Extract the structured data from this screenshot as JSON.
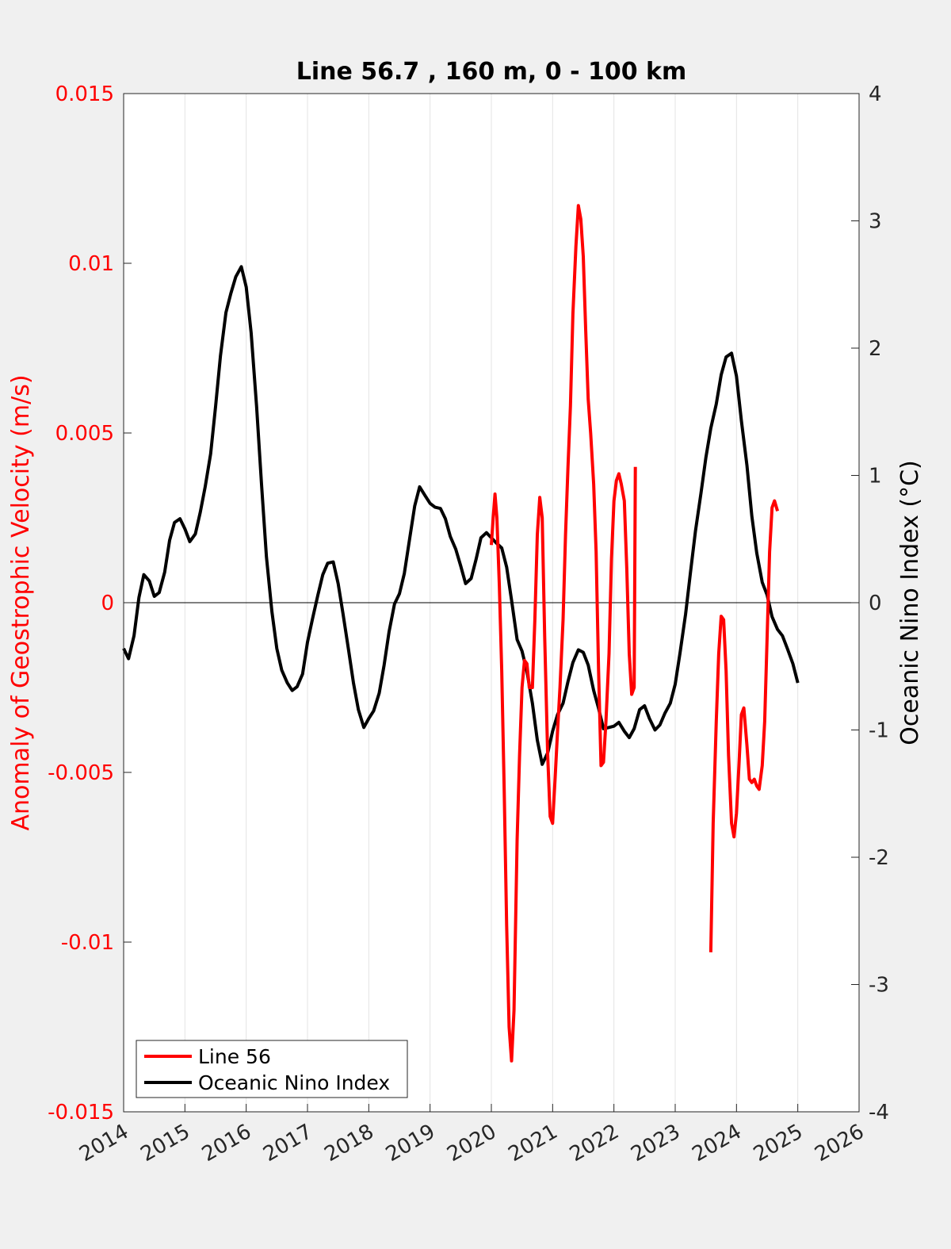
{
  "chart_data": {
    "type": "line",
    "title": "Line 56.7 , 160 m, 0 - 100 km",
    "xlim": [
      2014,
      2026
    ],
    "x_ticks": [
      2014,
      2015,
      2016,
      2017,
      2018,
      2019,
      2020,
      2021,
      2022,
      2023,
      2024,
      2025,
      2026
    ],
    "x_tick_labels": [
      "2014",
      "2015",
      "2016",
      "2017",
      "2018",
      "2019",
      "2020",
      "2021",
      "2022",
      "2023",
      "2024",
      "2025",
      "2026"
    ],
    "grid": "vertical",
    "legend_position": "bottom-left",
    "y_left": {
      "label": "Anomaly of Geostrophic Velocity (m/s)",
      "lim": [
        -0.015,
        0.015
      ],
      "ticks": [
        -0.015,
        -0.01,
        -0.005,
        0,
        0.005,
        0.01,
        0.015
      ],
      "tick_labels": [
        "-0.015",
        "-0.01",
        "-0.005",
        "0",
        "0.005",
        "0.01",
        "0.015"
      ],
      "color": "#ff0000"
    },
    "y_right": {
      "label": "Oceanic Nino Index (°C)",
      "lim": [
        -4,
        4
      ],
      "ticks": [
        -4,
        -3,
        -2,
        -1,
        0,
        1,
        2,
        3,
        4
      ],
      "tick_labels": [
        "-4",
        "-3",
        "-2",
        "-1",
        "0",
        "1",
        "2",
        "3",
        "4"
      ],
      "color": "#000000"
    },
    "series": [
      {
        "name": "Line 56",
        "axis": "left",
        "color": "#ff0000",
        "segments": [
          [
            [
              2020.0,
              0.0017
            ],
            [
              2020.03,
              0.0025
            ],
            [
              2020.06,
              0.0032
            ],
            [
              2020.09,
              0.0025
            ],
            [
              2020.13,
              0.0005
            ],
            [
              2020.17,
              -0.002
            ],
            [
              2020.21,
              -0.0055
            ],
            [
              2020.25,
              -0.0095
            ],
            [
              2020.29,
              -0.0125
            ],
            [
              2020.33,
              -0.0135
            ],
            [
              2020.37,
              -0.012
            ],
            [
              2020.42,
              -0.007
            ],
            [
              2020.46,
              -0.0045
            ],
            [
              2020.5,
              -0.0025
            ],
            [
              2020.54,
              -0.0017
            ],
            [
              2020.58,
              -0.0018
            ],
            [
              2020.62,
              -0.0025
            ],
            [
              2020.67,
              -0.0025
            ],
            [
              2020.71,
              -0.0005
            ],
            [
              2020.75,
              0.002
            ],
            [
              2020.79,
              0.0031
            ],
            [
              2020.83,
              0.0025
            ],
            [
              2020.87,
              -0.001
            ],
            [
              2020.92,
              -0.0045
            ],
            [
              2020.96,
              -0.0063
            ],
            [
              2021.0,
              -0.0065
            ],
            [
              2021.04,
              -0.0052
            ],
            [
              2021.08,
              -0.0038
            ],
            [
              2021.12,
              -0.0025
            ],
            [
              2021.17,
              -0.0005
            ],
            [
              2021.21,
              0.002
            ],
            [
              2021.25,
              0.004
            ],
            [
              2021.29,
              0.0058
            ],
            [
              2021.33,
              0.0085
            ],
            [
              2021.38,
              0.0105
            ],
            [
              2021.42,
              0.0117
            ],
            [
              2021.46,
              0.0113
            ],
            [
              2021.5,
              0.0102
            ],
            [
              2021.54,
              0.008
            ],
            [
              2021.58,
              0.006
            ],
            [
              2021.62,
              0.005
            ],
            [
              2021.67,
              0.0035
            ],
            [
              2021.71,
              0.0015
            ],
            [
              2021.75,
              -0.002
            ],
            [
              2021.79,
              -0.0048
            ],
            [
              2021.83,
              -0.0047
            ],
            [
              2021.87,
              -0.0035
            ],
            [
              2021.92,
              -0.0015
            ],
            [
              2021.96,
              0.0013
            ],
            [
              2022.0,
              0.003
            ],
            [
              2022.04,
              0.0036
            ],
            [
              2022.08,
              0.0038
            ],
            [
              2022.12,
              0.0035
            ],
            [
              2022.17,
              0.003
            ],
            [
              2022.21,
              0.001
            ],
            [
              2022.25,
              -0.0015
            ],
            [
              2022.29,
              -0.0027
            ],
            [
              2022.33,
              -0.0025
            ],
            [
              2022.35,
              0.004
            ]
          ],
          [
            [
              2023.58,
              -0.0103
            ],
            [
              2023.62,
              -0.0065
            ],
            [
              2023.67,
              -0.0035
            ],
            [
              2023.71,
              -0.0015
            ],
            [
              2023.75,
              -0.0004
            ],
            [
              2023.79,
              -0.0005
            ],
            [
              2023.83,
              -0.002
            ],
            [
              2023.87,
              -0.0045
            ],
            [
              2023.92,
              -0.0065
            ],
            [
              2023.96,
              -0.0069
            ],
            [
              2024.0,
              -0.0062
            ],
            [
              2024.04,
              -0.0048
            ],
            [
              2024.08,
              -0.0033
            ],
            [
              2024.12,
              -0.0031
            ],
            [
              2024.17,
              -0.0042
            ],
            [
              2024.21,
              -0.0052
            ],
            [
              2024.25,
              -0.0053
            ],
            [
              2024.29,
              -0.0052
            ],
            [
              2024.33,
              -0.0054
            ],
            [
              2024.37,
              -0.0055
            ],
            [
              2024.42,
              -0.0048
            ],
            [
              2024.46,
              -0.0035
            ],
            [
              2024.5,
              -0.001
            ],
            [
              2024.54,
              0.0015
            ],
            [
              2024.58,
              0.0028
            ],
            [
              2024.62,
              0.003
            ],
            [
              2024.67,
              0.0027
            ]
          ]
        ]
      },
      {
        "name": "Oceanic Nino Index",
        "axis": "right",
        "color": "#000000",
        "points": [
          [
            2014.0,
            -0.36
          ],
          [
            2014.08,
            -0.44
          ],
          [
            2014.17,
            -0.26
          ],
          [
            2014.25,
            0.04
          ],
          [
            2014.33,
            0.22
          ],
          [
            2014.42,
            0.17
          ],
          [
            2014.5,
            0.05
          ],
          [
            2014.58,
            0.08
          ],
          [
            2014.67,
            0.24
          ],
          [
            2014.75,
            0.49
          ],
          [
            2014.83,
            0.63
          ],
          [
            2014.92,
            0.66
          ],
          [
            2015.0,
            0.58
          ],
          [
            2015.08,
            0.48
          ],
          [
            2015.17,
            0.54
          ],
          [
            2015.25,
            0.71
          ],
          [
            2015.33,
            0.91
          ],
          [
            2015.42,
            1.17
          ],
          [
            2015.5,
            1.54
          ],
          [
            2015.58,
            1.94
          ],
          [
            2015.67,
            2.28
          ],
          [
            2015.75,
            2.43
          ],
          [
            2015.83,
            2.56
          ],
          [
            2015.92,
            2.64
          ],
          [
            2016.0,
            2.48
          ],
          [
            2016.08,
            2.12
          ],
          [
            2016.17,
            1.54
          ],
          [
            2016.25,
            0.93
          ],
          [
            2016.33,
            0.36
          ],
          [
            2016.42,
            -0.07
          ],
          [
            2016.5,
            -0.36
          ],
          [
            2016.58,
            -0.53
          ],
          [
            2016.67,
            -0.63
          ],
          [
            2016.75,
            -0.69
          ],
          [
            2016.83,
            -0.66
          ],
          [
            2016.92,
            -0.56
          ],
          [
            2017.0,
            -0.31
          ],
          [
            2017.08,
            -0.13
          ],
          [
            2017.17,
            0.06
          ],
          [
            2017.25,
            0.22
          ],
          [
            2017.33,
            0.31
          ],
          [
            2017.42,
            0.32
          ],
          [
            2017.5,
            0.15
          ],
          [
            2017.58,
            -0.09
          ],
          [
            2017.67,
            -0.37
          ],
          [
            2017.75,
            -0.63
          ],
          [
            2017.83,
            -0.84
          ],
          [
            2017.92,
            -0.98
          ],
          [
            2018.0,
            -0.91
          ],
          [
            2018.08,
            -0.85
          ],
          [
            2018.17,
            -0.71
          ],
          [
            2018.25,
            -0.49
          ],
          [
            2018.33,
            -0.23
          ],
          [
            2018.42,
            -0.01
          ],
          [
            2018.5,
            0.07
          ],
          [
            2018.58,
            0.23
          ],
          [
            2018.67,
            0.51
          ],
          [
            2018.75,
            0.76
          ],
          [
            2018.83,
            0.91
          ],
          [
            2018.92,
            0.84
          ],
          [
            2019.0,
            0.78
          ],
          [
            2019.08,
            0.75
          ],
          [
            2019.17,
            0.74
          ],
          [
            2019.25,
            0.66
          ],
          [
            2019.33,
            0.52
          ],
          [
            2019.42,
            0.42
          ],
          [
            2019.5,
            0.29
          ],
          [
            2019.58,
            0.15
          ],
          [
            2019.67,
            0.19
          ],
          [
            2019.75,
            0.34
          ],
          [
            2019.83,
            0.51
          ],
          [
            2019.92,
            0.55
          ],
          [
            2020.0,
            0.51
          ],
          [
            2020.08,
            0.47
          ],
          [
            2020.17,
            0.43
          ],
          [
            2020.25,
            0.28
          ],
          [
            2020.33,
            0.02
          ],
          [
            2020.42,
            -0.29
          ],
          [
            2020.5,
            -0.38
          ],
          [
            2020.58,
            -0.54
          ],
          [
            2020.67,
            -0.79
          ],
          [
            2020.75,
            -1.08
          ],
          [
            2020.83,
            -1.27
          ],
          [
            2020.92,
            -1.18
          ],
          [
            2021.0,
            -1.01
          ],
          [
            2021.08,
            -0.88
          ],
          [
            2021.17,
            -0.79
          ],
          [
            2021.25,
            -0.62
          ],
          [
            2021.33,
            -0.47
          ],
          [
            2021.42,
            -0.37
          ],
          [
            2021.5,
            -0.39
          ],
          [
            2021.58,
            -0.49
          ],
          [
            2021.67,
            -0.69
          ],
          [
            2021.75,
            -0.83
          ],
          [
            2021.83,
            -0.99
          ],
          [
            2021.92,
            -0.98
          ],
          [
            2022.0,
            -0.97
          ],
          [
            2022.08,
            -0.94
          ],
          [
            2022.17,
            -1.01
          ],
          [
            2022.25,
            -1.06
          ],
          [
            2022.33,
            -0.99
          ],
          [
            2022.42,
            -0.84
          ],
          [
            2022.5,
            -0.81
          ],
          [
            2022.58,
            -0.91
          ],
          [
            2022.67,
            -1.0
          ],
          [
            2022.75,
            -0.96
          ],
          [
            2022.83,
            -0.87
          ],
          [
            2022.92,
            -0.79
          ],
          [
            2023.0,
            -0.64
          ],
          [
            2023.08,
            -0.39
          ],
          [
            2023.17,
            -0.09
          ],
          [
            2023.25,
            0.24
          ],
          [
            2023.33,
            0.56
          ],
          [
            2023.42,
            0.86
          ],
          [
            2023.5,
            1.14
          ],
          [
            2023.58,
            1.37
          ],
          [
            2023.67,
            1.56
          ],
          [
            2023.75,
            1.79
          ],
          [
            2023.83,
            1.93
          ],
          [
            2023.92,
            1.96
          ],
          [
            2024.0,
            1.78
          ],
          [
            2024.08,
            1.43
          ],
          [
            2024.17,
            1.08
          ],
          [
            2024.25,
            0.68
          ],
          [
            2024.33,
            0.39
          ],
          [
            2024.42,
            0.16
          ],
          [
            2024.5,
            0.06
          ],
          [
            2024.58,
            -0.11
          ],
          [
            2024.67,
            -0.21
          ],
          [
            2024.75,
            -0.26
          ],
          [
            2024.83,
            -0.36
          ],
          [
            2024.92,
            -0.48
          ],
          [
            2025.0,
            -0.63
          ]
        ]
      }
    ]
  }
}
